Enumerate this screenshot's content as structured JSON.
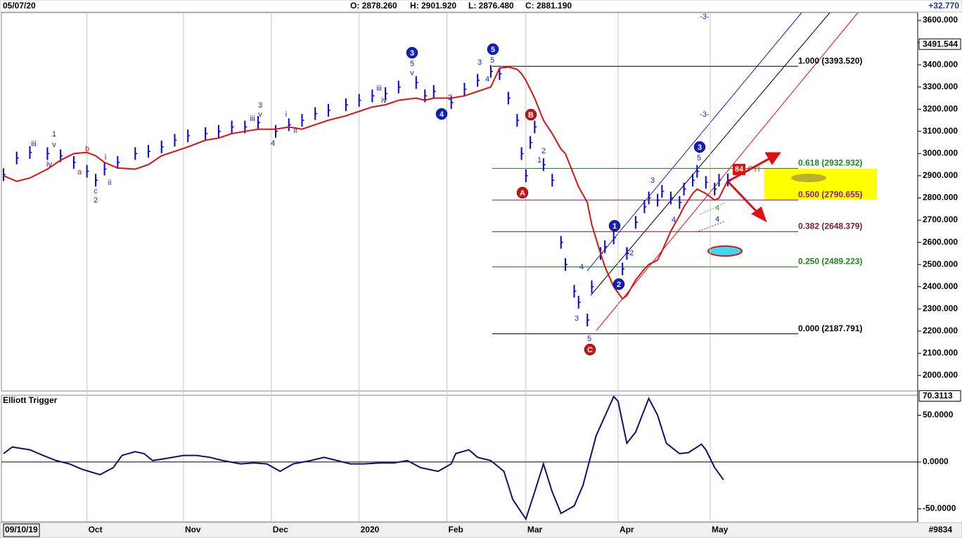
{
  "header": {
    "date": "05/07/20",
    "open": "O: 2878.260",
    "high": "H: 2901.920",
    "low": "L: 2876.480",
    "close": "C: 2881.190",
    "change": "+32.770"
  },
  "footer": {
    "id": "#9834"
  },
  "wave_labels": [
    "3",
    "5",
    "4",
    "3",
    "1",
    "2",
    "B",
    "A",
    "C",
    "iii",
    "1",
    "v",
    "iv",
    "b",
    "a",
    "c",
    "2",
    "i",
    "ii",
    "3",
    "v",
    "iii",
    "i",
    "ii",
    "4",
    "iii",
    "iv",
    "5",
    "v",
    "3",
    "5",
    "4",
    "2",
    "2",
    "1",
    "4",
    "3",
    "5",
    "1",
    "2",
    "3",
    "4",
    "5",
    "4",
    "4",
    "-3-",
    "-3-",
    "84",
    "PTI"
  ],
  "chart_data": [
    {
      "type": "ohlc",
      "xlim": [
        0,
        165
      ],
      "ylim": [
        1930,
        3635
      ],
      "yticks": [
        {
          "value": 3600,
          "label": "3600.000"
        },
        {
          "value": 3500,
          "label": "3500.000"
        },
        {
          "value": 3400,
          "label": "3400.000"
        },
        {
          "value": 3300,
          "label": "3300.000"
        },
        {
          "value": 3200,
          "label": "3200.000"
        },
        {
          "value": 3100,
          "label": "3100.000"
        },
        {
          "value": 3000,
          "label": "3000.000"
        },
        {
          "value": 2900,
          "label": "2900.000"
        },
        {
          "value": 2800,
          "label": "2800.000"
        },
        {
          "value": 2700,
          "label": "2700.000"
        },
        {
          "value": 2600,
          "label": "2600.000"
        },
        {
          "value": 2500,
          "label": "2500.000"
        },
        {
          "value": 2400,
          "label": "2400.000"
        },
        {
          "value": 2300,
          "label": "2300.000"
        },
        {
          "value": 2200,
          "label": "2200.000"
        },
        {
          "value": 2100,
          "label": "2100.000"
        },
        {
          "value": 2000,
          "label": "2000.000"
        }
      ],
      "price_tag": {
        "value": 3491.544,
        "label": "3491.544"
      },
      "x": [
        0,
        3,
        6,
        10,
        13,
        16,
        19,
        21,
        23,
        26,
        30,
        33,
        36,
        39,
        42,
        46,
        49,
        52,
        55,
        58,
        62,
        65,
        68,
        71,
        74,
        78,
        81,
        84,
        87,
        90,
        94,
        96,
        98,
        102,
        105,
        108,
        111,
        113,
        115,
        117,
        118,
        119,
        120,
        121,
        123,
        125,
        127,
        128,
        130,
        131,
        133,
        134,
        136,
        137,
        139,
        141,
        142,
        144,
        146,
        147,
        149,
        150,
        152,
        154,
        155,
        157,
        158,
        160,
        162,
        163,
        165
      ],
      "series": [
        {
          "type": "bar",
          "color": "#0000e0",
          "values": [
            2905,
            2980,
            3005,
            3000,
            2990,
            2960,
            2920,
            2880,
            2930,
            2960,
            3000,
            3010,
            3030,
            3060,
            3080,
            3090,
            3100,
            3120,
            3120,
            3140,
            3100,
            3130,
            3150,
            3180,
            3195,
            3220,
            3240,
            3260,
            3270,
            3300,
            3320,
            3260,
            3280,
            3230,
            3290,
            3330,
            3370,
            3360,
            3250,
            3150,
            3000,
            2900,
            3050,
            3120,
            2950,
            2880,
            2600,
            2500,
            2380,
            2330,
            2250,
            2400,
            2550,
            2580,
            2620,
            2480,
            2550,
            2690,
            2760,
            2800,
            2790,
            2830,
            2800,
            2780,
            2840,
            2880,
            2920,
            2870,
            2840,
            2880,
            2881
          ]
        },
        {
          "type": "line",
          "color": "#e01010",
          "values": [
            2900,
            2875,
            2890,
            2930,
            2970,
            3000,
            3005,
            2990,
            2960,
            2935,
            2930,
            2950,
            2990,
            3010,
            3030,
            3060,
            3070,
            3090,
            3100,
            3110,
            3110,
            3120,
            3110,
            3130,
            3150,
            3170,
            3190,
            3210,
            3220,
            3240,
            3250,
            3240,
            3250,
            3250,
            3260,
            3280,
            3300,
            3385,
            3390,
            3380,
            3360,
            3330,
            3290,
            3250,
            3150,
            3090,
            3020,
            3000,
            2900,
            2850,
            2780,
            2680,
            2550,
            2490,
            2400,
            2345,
            2360,
            2430,
            2480,
            2500,
            2520,
            2560,
            2650,
            2720,
            2760,
            2820,
            2840,
            2820,
            2790,
            2800,
            2880
          ]
        }
      ],
      "levels": [
        {
          "value": 3393.52,
          "label": "1.000 (3393.520)",
          "color": "#000000"
        },
        {
          "value": 2932.932,
          "label": "0.618 (2932.932)",
          "color": "#1a8a1a"
        },
        {
          "value": 2790.655,
          "label": "0.500 (2790.655)",
          "color": "#8a1a8a"
        },
        {
          "value": 2648.379,
          "label": "0.382 (2648.379)",
          "color": "#8a1a2a"
        },
        {
          "value": 2489.223,
          "label": "0.250 (2489.223)",
          "color": "#1a8a1a"
        },
        {
          "value": 2187.791,
          "label": "0.000 (2187.791)",
          "color": "#000000"
        }
      ]
    },
    {
      "type": "line",
      "title": "Elliott Trigger",
      "xlim": [
        0,
        165
      ],
      "ylim": [
        -64,
        71.4
      ],
      "xticks": [
        {
          "value": 0,
          "label": "09/10/19"
        },
        {
          "value": 19,
          "label": "Oct"
        },
        {
          "value": 41,
          "label": "Nov"
        },
        {
          "value": 61,
          "label": "Dec"
        },
        {
          "value": 81,
          "label": "2020"
        },
        {
          "value": 101,
          "label": "Feb"
        },
        {
          "value": 119,
          "label": "Mar"
        },
        {
          "value": 140,
          "label": "Apr"
        },
        {
          "value": 161,
          "label": "May"
        }
      ],
      "yticks": [
        {
          "value": 50,
          "label": "50.0000"
        },
        {
          "value": 0,
          "label": "0.0000"
        },
        {
          "value": -50,
          "label": "-50.0000"
        }
      ],
      "price_tag": {
        "value": 70.3113,
        "label": "70.3113"
      },
      "zero_line": true,
      "x": [
        0,
        2,
        6,
        9,
        12,
        15,
        18,
        22,
        25,
        27,
        30,
        32,
        34,
        38,
        41,
        44,
        47,
        50,
        54,
        57,
        60,
        63,
        66,
        70,
        73,
        76,
        79,
        82,
        86,
        89,
        92,
        95,
        99,
        102,
        103,
        106,
        108,
        111,
        114,
        116,
        119,
        121,
        123,
        125,
        127,
        130,
        132,
        135,
        139,
        140,
        142,
        144,
        147,
        149,
        151,
        154,
        156,
        159,
        160,
        162,
        164
      ],
      "series": [
        {
          "color": "#10106e",
          "values": [
            9,
            16,
            13,
            7,
            1.5,
            -2,
            -8,
            -13.5,
            -6,
            7,
            11,
            9,
            1.5,
            4.5,
            7,
            7,
            5,
            1.5,
            -2,
            -1,
            -2,
            -10,
            -2,
            1.5,
            5,
            1.5,
            -2,
            -2,
            -1,
            -1,
            1.5,
            -6,
            -10,
            -2,
            9,
            13,
            5,
            1.5,
            -10,
            -40,
            -61,
            -32,
            -2,
            -32,
            -55,
            -47,
            -25,
            28,
            70,
            65,
            20,
            32,
            68,
            50,
            20,
            9,
            10,
            19,
            13,
            -6,
            -19
          ]
        }
      ]
    }
  ]
}
